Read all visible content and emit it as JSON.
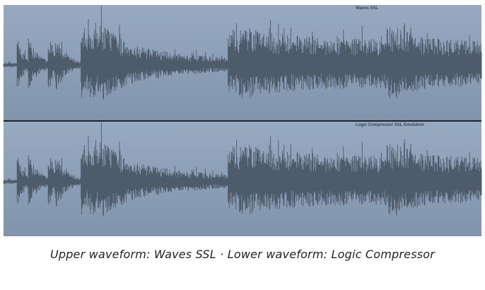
{
  "upper_panel": {
    "label": "Waves SSL"
  },
  "lower_panel": {
    "label": "Logic Compressor SSL Emulation"
  },
  "caption": "Upper waveform: Waves SSL · Lower waveform: Logic Compressor"
}
